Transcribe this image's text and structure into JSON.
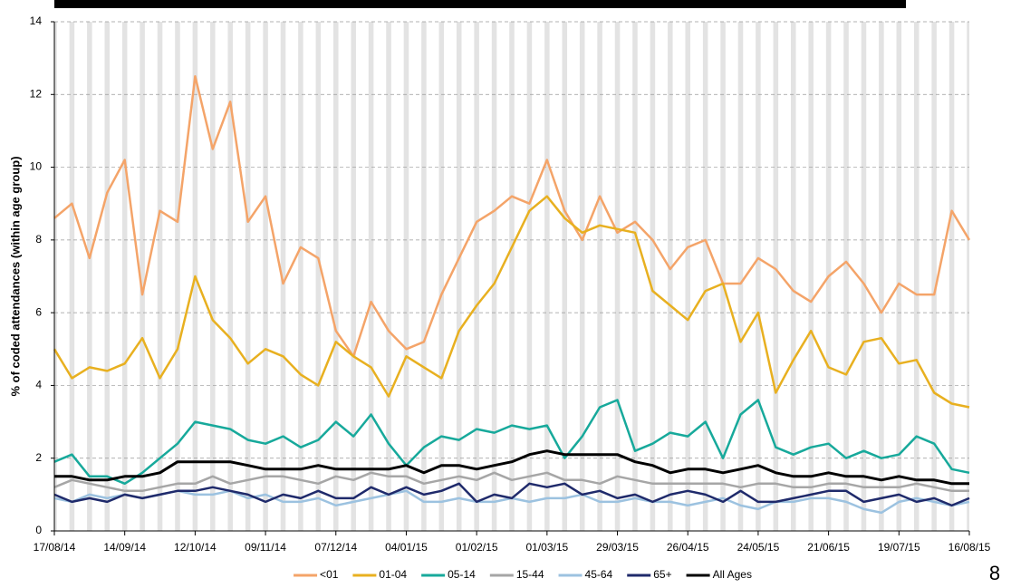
{
  "chart_data": {
    "type": "line",
    "y_label": "% of coded attendances (within age group)",
    "page_number": "8",
    "x": [
      "17/08/14",
      "24/08/14",
      "31/08/14",
      "07/09/14",
      "14/09/14",
      "21/09/14",
      "28/09/14",
      "05/10/14",
      "12/10/14",
      "19/10/14",
      "26/10/14",
      "02/11/14",
      "09/11/14",
      "16/11/14",
      "23/11/14",
      "30/11/14",
      "07/12/14",
      "14/12/14",
      "21/12/14",
      "28/12/14",
      "04/01/15",
      "11/01/15",
      "18/01/15",
      "25/01/15",
      "01/02/15",
      "08/02/15",
      "15/02/15",
      "22/02/15",
      "01/03/15",
      "08/03/15",
      "15/03/15",
      "22/03/15",
      "29/03/15",
      "05/04/15",
      "12/04/15",
      "19/04/15",
      "26/04/15",
      "03/05/15",
      "10/05/15",
      "17/05/15",
      "24/05/15",
      "31/05/15",
      "07/06/15",
      "14/06/15",
      "21/06/15",
      "28/06/15",
      "05/07/15",
      "12/07/15",
      "19/07/15",
      "26/07/15",
      "02/08/15",
      "09/08/15",
      "16/08/15"
    ],
    "xlim": [
      "17/08/14",
      "16/08/15"
    ],
    "xticks": [
      "17/08/14",
      "14/09/14",
      "12/10/14",
      "09/11/14",
      "07/12/14",
      "04/01/15",
      "01/02/15",
      "01/03/15",
      "29/03/15",
      "26/04/15",
      "24/05/15",
      "21/06/15",
      "19/07/15",
      "16/08/15"
    ],
    "ylim": [
      0,
      14
    ],
    "yticks": [
      0,
      2,
      4,
      6,
      8,
      10,
      12,
      14
    ],
    "grid": true,
    "series": [
      {
        "name": "<01",
        "color": "#f4a469",
        "values": [
          8.6,
          9.0,
          7.5,
          9.3,
          10.2,
          6.5,
          8.8,
          8.5,
          12.5,
          10.5,
          11.8,
          8.5,
          9.2,
          6.8,
          7.8,
          7.5,
          5.5,
          4.8,
          6.3,
          5.5,
          5.0,
          5.2,
          6.5,
          7.5,
          8.5,
          8.8,
          9.2,
          9.0,
          10.2,
          8.8,
          8.0,
          9.2,
          8.2,
          8.5,
          8.0,
          7.2,
          7.8,
          8.0,
          6.8,
          6.8,
          7.5,
          7.2,
          6.6,
          6.3,
          7.0,
          7.4,
          6.8,
          6.0,
          6.8,
          6.5,
          6.5,
          8.8,
          8.0
        ]
      },
      {
        "name": "01-04",
        "color": "#e8b020",
        "values": [
          5.0,
          4.2,
          4.5,
          4.4,
          4.6,
          5.3,
          4.2,
          5.0,
          7.0,
          5.8,
          5.3,
          4.6,
          5.0,
          4.8,
          4.3,
          4.0,
          5.2,
          4.8,
          4.5,
          3.7,
          4.8,
          4.5,
          4.2,
          5.5,
          6.2,
          6.8,
          7.8,
          8.8,
          9.2,
          8.6,
          8.2,
          8.4,
          8.3,
          8.2,
          6.6,
          6.2,
          5.8,
          6.6,
          6.8,
          5.2,
          6.0,
          3.8,
          4.7,
          5.5,
          4.5,
          4.3,
          5.2,
          5.3,
          4.6,
          4.7,
          3.8,
          3.5,
          3.4
        ]
      },
      {
        "name": "05-14",
        "color": "#17a99b",
        "values": [
          1.9,
          2.1,
          1.5,
          1.5,
          1.3,
          1.6,
          2.0,
          2.4,
          3.0,
          2.9,
          2.8,
          2.5,
          2.4,
          2.6,
          2.3,
          2.5,
          3.0,
          2.6,
          3.2,
          2.4,
          1.8,
          2.3,
          2.6,
          2.5,
          2.8,
          2.7,
          2.9,
          2.8,
          2.9,
          2.0,
          2.6,
          3.4,
          3.6,
          2.2,
          2.4,
          2.7,
          2.6,
          3.0,
          2.0,
          3.2,
          3.6,
          2.3,
          2.1,
          2.3,
          2.4,
          2.0,
          2.2,
          2.0,
          2.1,
          2.6,
          2.4,
          1.7,
          1.6
        ]
      },
      {
        "name": "15-44",
        "color": "#a6a6a6",
        "values": [
          1.2,
          1.4,
          1.3,
          1.2,
          1.1,
          1.1,
          1.2,
          1.3,
          1.3,
          1.5,
          1.3,
          1.4,
          1.5,
          1.5,
          1.4,
          1.3,
          1.5,
          1.4,
          1.6,
          1.5,
          1.5,
          1.3,
          1.4,
          1.5,
          1.4,
          1.6,
          1.4,
          1.5,
          1.6,
          1.4,
          1.4,
          1.3,
          1.5,
          1.4,
          1.3,
          1.3,
          1.3,
          1.3,
          1.3,
          1.2,
          1.3,
          1.3,
          1.2,
          1.2,
          1.3,
          1.3,
          1.2,
          1.2,
          1.2,
          1.3,
          1.2,
          1.1,
          1.1
        ]
      },
      {
        "name": "45-64",
        "color": "#9cc2e0",
        "values": [
          0.9,
          0.8,
          1.0,
          0.9,
          1.0,
          0.9,
          1.0,
          1.1,
          1.0,
          1.0,
          1.1,
          0.9,
          1.0,
          0.8,
          0.8,
          0.9,
          0.7,
          0.8,
          0.9,
          1.0,
          1.1,
          0.8,
          0.8,
          0.9,
          0.8,
          0.8,
          0.9,
          0.8,
          0.9,
          0.9,
          1.0,
          0.8,
          0.8,
          0.9,
          0.8,
          0.8,
          0.7,
          0.8,
          0.9,
          0.7,
          0.6,
          0.8,
          0.8,
          0.9,
          0.9,
          0.8,
          0.6,
          0.5,
          0.8,
          0.9,
          0.8,
          0.7,
          0.8
        ]
      },
      {
        "name": "65+",
        "color": "#1f2a6b",
        "values": [
          1.0,
          0.8,
          0.9,
          0.8,
          1.0,
          0.9,
          1.0,
          1.1,
          1.1,
          1.2,
          1.1,
          1.0,
          0.8,
          1.0,
          0.9,
          1.1,
          0.9,
          0.9,
          1.2,
          1.0,
          1.2,
          1.0,
          1.1,
          1.3,
          0.8,
          1.0,
          0.9,
          1.3,
          1.2,
          1.3,
          1.0,
          1.1,
          0.9,
          1.0,
          0.8,
          1.0,
          1.1,
          1.0,
          0.8,
          1.1,
          0.8,
          0.8,
          0.9,
          1.0,
          1.1,
          1.1,
          0.8,
          0.9,
          1.0,
          0.8,
          0.9,
          0.7,
          0.9
        ]
      },
      {
        "name": "All Ages",
        "color": "#000000",
        "values": [
          1.5,
          1.5,
          1.4,
          1.4,
          1.5,
          1.5,
          1.6,
          1.9,
          1.9,
          1.9,
          1.9,
          1.8,
          1.7,
          1.7,
          1.7,
          1.8,
          1.7,
          1.7,
          1.7,
          1.7,
          1.8,
          1.6,
          1.8,
          1.8,
          1.7,
          1.8,
          1.9,
          2.1,
          2.2,
          2.1,
          2.1,
          2.1,
          2.1,
          1.9,
          1.8,
          1.6,
          1.7,
          1.7,
          1.6,
          1.7,
          1.8,
          1.6,
          1.5,
          1.5,
          1.6,
          1.5,
          1.5,
          1.4,
          1.5,
          1.4,
          1.4,
          1.3,
          1.3
        ]
      }
    ]
  }
}
